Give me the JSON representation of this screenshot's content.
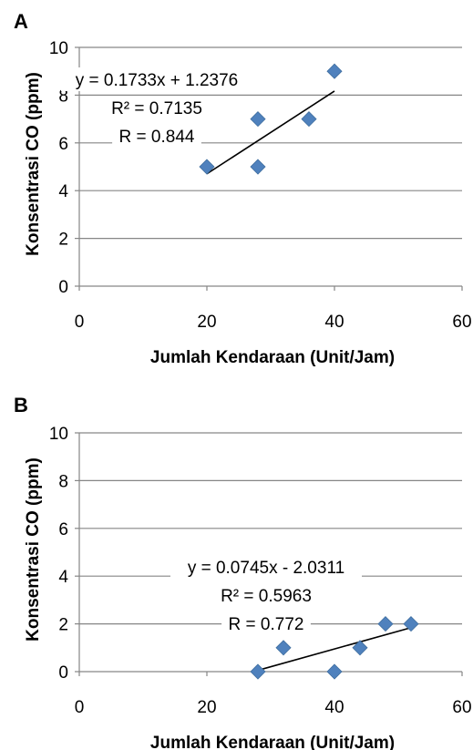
{
  "chart_data": [
    {
      "type": "scatter",
      "panel_label": "A",
      "xlabel": "Jumlah Kendaraan (Unit/Jam)",
      "ylabel": "Konsentrasi CO (ppm)",
      "xlim": [
        0,
        60
      ],
      "ylim": [
        0,
        10
      ],
      "xticks": [
        "0",
        "20",
        "40",
        "60"
      ],
      "yticks": [
        "0",
        "2",
        "4",
        "6",
        "8",
        "10"
      ],
      "grid": "horizontal",
      "legend": "none",
      "marker": "diamond",
      "marker_color": "#4F81BD",
      "points": [
        {
          "x": 20,
          "y": 5
        },
        {
          "x": 28,
          "y": 7
        },
        {
          "x": 28,
          "y": 5
        },
        {
          "x": 36,
          "y": 7
        },
        {
          "x": 40,
          "y": 9
        }
      ],
      "trendline": {
        "slope": 0.1733,
        "intercept": 1.2376,
        "x_range": [
          20,
          40
        ]
      },
      "annotation": [
        "y = 0.1733x + 1.2376",
        "R² = 0.7135",
        "R = 0.844"
      ]
    },
    {
      "type": "scatter",
      "panel_label": "B",
      "xlabel": "Jumlah Kendaraan (Unit/Jam)",
      "ylabel": "Konsentrasi CO (ppm)",
      "xlim": [
        0,
        60
      ],
      "ylim": [
        0,
        10
      ],
      "xticks": [
        "0",
        "20",
        "40",
        "60"
      ],
      "yticks": [
        "0",
        "2",
        "4",
        "6",
        "8",
        "10"
      ],
      "grid": "horizontal",
      "legend": "none",
      "marker": "diamond",
      "marker_color": "#4F81BD",
      "points": [
        {
          "x": 28,
          "y": 0
        },
        {
          "x": 32,
          "y": 1
        },
        {
          "x": 40,
          "y": 0
        },
        {
          "x": 44,
          "y": 1
        },
        {
          "x": 48,
          "y": 2
        },
        {
          "x": 52,
          "y": 2
        }
      ],
      "trendline": {
        "slope": 0.0745,
        "intercept": -2.0311,
        "x_range": [
          28,
          52
        ]
      },
      "annotation": [
        "y = 0.0745x - 2.0311",
        "R² = 0.5963",
        "R = 0.772"
      ]
    }
  ]
}
